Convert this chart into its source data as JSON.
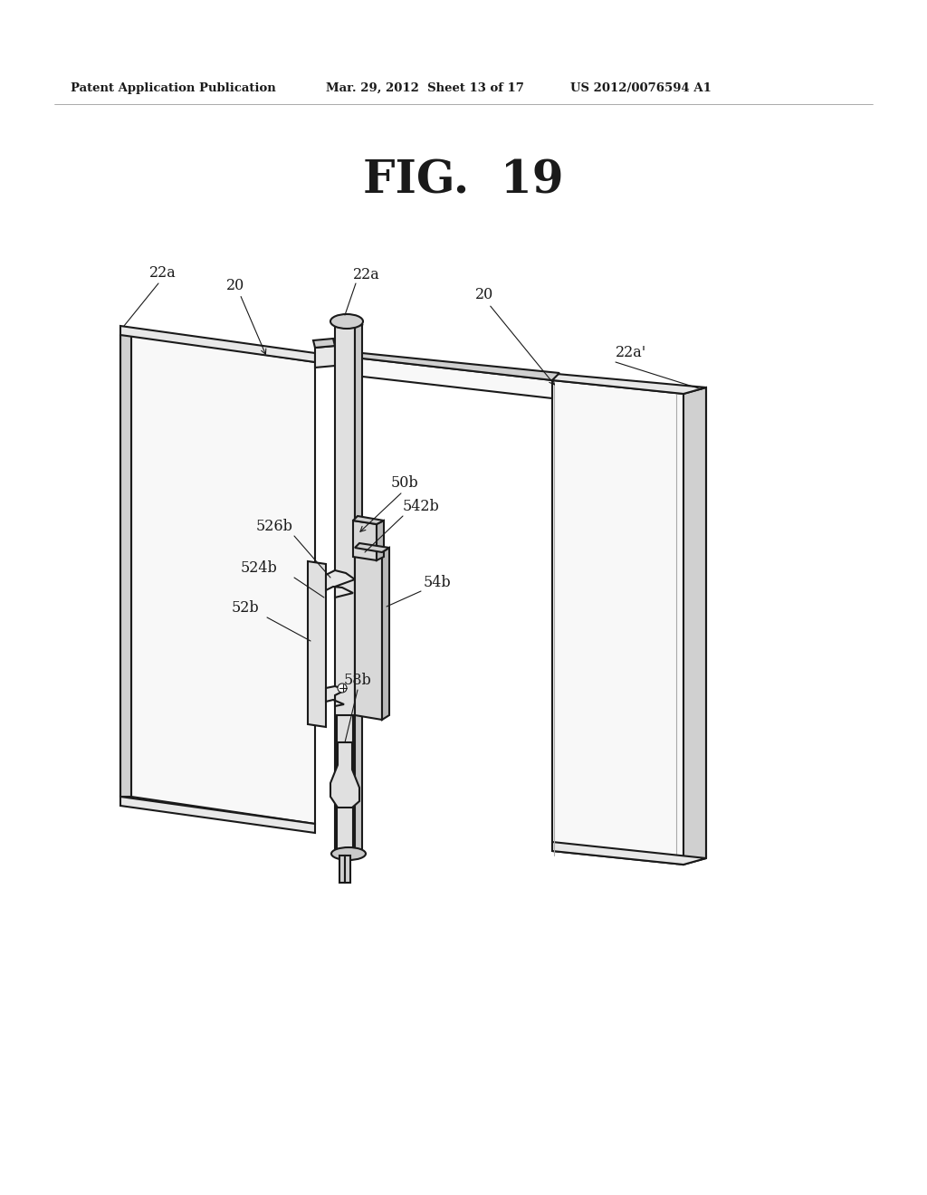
{
  "bg_color": "#ffffff",
  "line_color": "#1a1a1a",
  "fig_title": "FIG.  19",
  "header_left": "Patent Application Publication",
  "header_mid": "Mar. 29, 2012  Sheet 13 of 17",
  "header_right": "US 2012/0076594 A1",
  "panel_face": "#f8f8f8",
  "panel_side": "#e8e8e8",
  "panel_dark": "#d0d0d0",
  "post_face": "#e0e0e0",
  "post_side": "#c8c8c8",
  "bracket_face": "#d8d8d8",
  "bracket_dark": "#b8b8b8"
}
